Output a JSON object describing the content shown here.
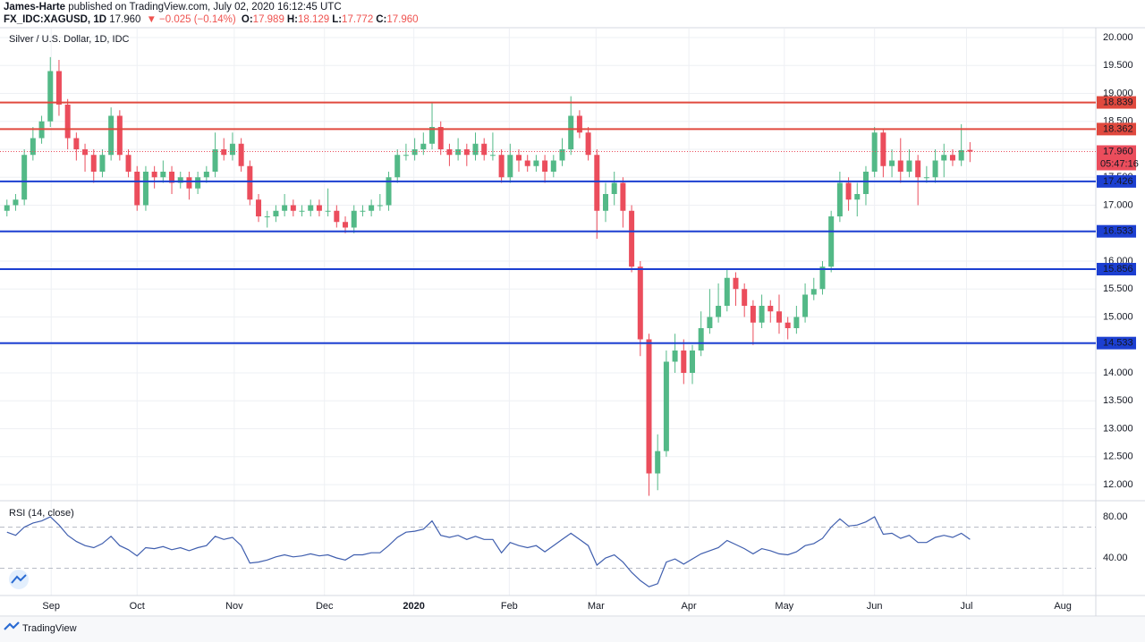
{
  "header": {
    "author": "James-Harte",
    "published": "published on TradingView.com, July 02, 2020 16:12:45 UTC",
    "symbol": "FX_IDC:XAGUSD, 1D",
    "last": "17.960",
    "change": "−0.025 (−0.14%)",
    "ohlc": [
      {
        "key": "O:",
        "value": "17.989"
      },
      {
        "key": "H:",
        "value": "18.129"
      },
      {
        "key": "L:",
        "value": "17.772"
      },
      {
        "key": "C:",
        "value": "17.960"
      }
    ]
  },
  "chart_data": {
    "type": "candlestick",
    "title": "Silver / U.S. Dollar, 1D, IDC",
    "up_color": "#53b987",
    "down_color": "#eb4d5c",
    "open": [
      16.9,
      17.0,
      17.1,
      17.9,
      18.2,
      18.5,
      19.4,
      18.8,
      18.2,
      18.0,
      17.9,
      17.6,
      17.9,
      18.6,
      17.9,
      17.6,
      17.0,
      17.6,
      17.5,
      17.6,
      17.4,
      17.5,
      17.3,
      17.5,
      17.6,
      18.0,
      17.9,
      18.1,
      17.7,
      17.1,
      16.8,
      16.8,
      16.9,
      17.0,
      16.9,
      16.9,
      17.0,
      16.9,
      16.9,
      16.7,
      16.6,
      16.9,
      16.9,
      17.0,
      17.0,
      17.5,
      17.9,
      17.9,
      18.0,
      18.1,
      18.4,
      18.0,
      17.9,
      18.0,
      17.9,
      18.1,
      17.9,
      17.9,
      17.5,
      17.9,
      17.8,
      17.7,
      17.8,
      17.6,
      17.8,
      18.0,
      18.6,
      18.3,
      17.9,
      16.9,
      17.2,
      17.4,
      16.9,
      15.9,
      14.6,
      12.2,
      12.6,
      14.2,
      14.4,
      14.0,
      14.4,
      14.8,
      15.0,
      15.2,
      15.7,
      15.5,
      15.2,
      14.9,
      15.2,
      15.1,
      14.9,
      14.8,
      15.0,
      15.4,
      15.5,
      15.9,
      16.8,
      17.4,
      17.1,
      17.2,
      17.6,
      18.3,
      17.7,
      17.8,
      17.6,
      17.8,
      17.5,
      17.5,
      17.8,
      17.9,
      17.8,
      17.989
    ],
    "high": [
      17.1,
      17.2,
      18.0,
      18.4,
      18.6,
      19.65,
      19.6,
      18.9,
      18.3,
      18.1,
      18.0,
      18.0,
      18.75,
      18.7,
      18.0,
      17.7,
      17.7,
      17.7,
      17.8,
      17.7,
      17.6,
      17.6,
      17.6,
      17.7,
      18.3,
      18.2,
      18.3,
      18.2,
      17.8,
      17.2,
      16.9,
      17.0,
      17.2,
      17.1,
      17.0,
      17.1,
      17.1,
      17.3,
      17.0,
      16.8,
      17.0,
      17.0,
      17.1,
      17.2,
      17.6,
      18.0,
      18.1,
      18.2,
      18.3,
      18.85,
      18.5,
      18.1,
      18.2,
      18.1,
      18.3,
      18.2,
      18.3,
      18.0,
      18.1,
      18.0,
      17.9,
      17.9,
      17.9,
      17.9,
      18.2,
      18.95,
      18.7,
      18.4,
      18.0,
      17.4,
      17.6,
      17.5,
      17.0,
      16.0,
      14.7,
      12.9,
      14.4,
      14.7,
      14.6,
      14.5,
      15.1,
      15.5,
      15.6,
      15.85,
      15.8,
      15.6,
      15.3,
      15.4,
      15.3,
      15.4,
      15.0,
      15.2,
      15.6,
      15.7,
      16.0,
      16.9,
      17.6,
      17.5,
      17.4,
      17.7,
      18.4,
      18.35,
      18.0,
      18.2,
      18.0,
      17.9,
      17.7,
      18.0,
      18.1,
      18.0,
      18.45,
      18.129
    ],
    "low": [
      16.8,
      16.9,
      17.0,
      17.8,
      18.1,
      18.4,
      18.6,
      18.0,
      17.8,
      17.6,
      17.4,
      17.5,
      17.8,
      17.8,
      17.5,
      16.9,
      16.9,
      17.3,
      17.4,
      17.2,
      17.3,
      17.1,
      17.2,
      17.4,
      17.5,
      17.8,
      17.8,
      17.6,
      17.0,
      16.7,
      16.6,
      16.7,
      16.8,
      16.8,
      16.8,
      16.8,
      16.8,
      16.8,
      16.6,
      16.5,
      16.5,
      16.8,
      16.8,
      16.9,
      16.9,
      17.4,
      17.8,
      17.8,
      17.9,
      18.0,
      17.9,
      17.7,
      17.8,
      17.7,
      17.8,
      17.8,
      17.8,
      17.4,
      17.4,
      17.6,
      17.6,
      17.6,
      17.4,
      17.5,
      17.7,
      17.9,
      18.2,
      17.8,
      16.4,
      16.7,
      17.0,
      16.6,
      15.8,
      14.3,
      11.8,
      11.9,
      12.5,
      14.0,
      13.8,
      13.8,
      14.3,
      14.7,
      14.9,
      15.1,
      15.2,
      15.0,
      14.5,
      14.8,
      14.9,
      14.7,
      14.6,
      14.7,
      14.9,
      15.3,
      15.4,
      15.8,
      16.7,
      16.9,
      16.8,
      17.0,
      17.5,
      17.5,
      17.5,
      17.4,
      17.5,
      17.0,
      17.4,
      17.4,
      17.5,
      17.7,
      17.7,
      17.772
    ],
    "close": [
      17.0,
      17.1,
      17.9,
      18.2,
      18.5,
      19.4,
      18.8,
      18.2,
      18.0,
      17.9,
      17.6,
      17.9,
      18.6,
      17.9,
      17.6,
      17.0,
      17.6,
      17.5,
      17.6,
      17.4,
      17.5,
      17.3,
      17.5,
      17.6,
      18.0,
      17.9,
      18.1,
      17.7,
      17.1,
      16.8,
      16.8,
      16.9,
      17.0,
      16.9,
      16.9,
      17.0,
      16.9,
      16.9,
      16.7,
      16.6,
      16.9,
      16.9,
      17.0,
      17.0,
      17.5,
      17.9,
      17.9,
      18.0,
      18.1,
      18.4,
      18.0,
      17.9,
      18.0,
      17.9,
      18.1,
      17.9,
      17.9,
      17.5,
      17.9,
      17.8,
      17.7,
      17.8,
      17.6,
      17.8,
      18.0,
      18.6,
      18.3,
      17.9,
      16.9,
      17.2,
      17.4,
      16.9,
      15.9,
      14.6,
      12.2,
      12.6,
      14.2,
      14.4,
      14.0,
      14.4,
      14.8,
      15.0,
      15.2,
      15.7,
      15.5,
      15.2,
      14.9,
      15.2,
      15.1,
      14.9,
      14.8,
      15.0,
      15.4,
      15.5,
      15.9,
      16.8,
      17.4,
      17.1,
      17.2,
      17.6,
      18.3,
      17.7,
      17.8,
      17.6,
      17.8,
      17.5,
      17.5,
      17.8,
      17.9,
      17.8,
      17.985,
      17.96
    ],
    "xlim": [
      -0.8,
      125.5
    ],
    "xticks": [
      {
        "value": 5.1,
        "label": "Sep"
      },
      {
        "value": 15.0,
        "label": "Oct"
      },
      {
        "value": 26.2,
        "label": "Nov"
      },
      {
        "value": 36.6,
        "label": "Dec"
      },
      {
        "value": 46.9,
        "label": "2020"
      },
      {
        "value": 57.9,
        "label": "Feb"
      },
      {
        "value": 67.9,
        "label": "Mar"
      },
      {
        "value": 78.6,
        "label": "Apr"
      },
      {
        "value": 89.6,
        "label": "May"
      },
      {
        "value": 100.0,
        "label": "Jun"
      },
      {
        "value": 110.6,
        "label": "Jul"
      },
      {
        "value": 121.7,
        "label": "Aug"
      }
    ],
    "ylim": [
      11.744,
      20.16
    ],
    "yticks": [
      {
        "value": 12,
        "label": "12.000"
      },
      {
        "value": 12.5,
        "label": "12.500"
      },
      {
        "value": 13,
        "label": "13.000"
      },
      {
        "value": 13.5,
        "label": "13.500"
      },
      {
        "value": 14,
        "label": "14.000"
      },
      {
        "value": 14.5,
        "label": "14.500"
      },
      {
        "value": 15,
        "label": "15.000"
      },
      {
        "value": 15.5,
        "label": "15.500"
      },
      {
        "value": 16,
        "label": "16.000"
      },
      {
        "value": 16.5,
        "label": "16.500"
      },
      {
        "value": 17,
        "label": "17.000"
      },
      {
        "value": 17.5,
        "label": "17.500"
      },
      {
        "value": 18,
        "label": "18.000"
      },
      {
        "value": 18.5,
        "label": "18.500"
      },
      {
        "value": 19,
        "label": "19.000"
      },
      {
        "value": 19.5,
        "label": "19.500"
      },
      {
        "value": 20,
        "label": "20.000"
      }
    ],
    "grid": true,
    "levels": [
      {
        "value": 18.839,
        "color": "#e0493e"
      },
      {
        "value": 18.362,
        "color": "#e0493e"
      },
      {
        "value": 17.426,
        "color": "#1c3fd1"
      },
      {
        "value": 16.533,
        "color": "#1c3fd1"
      },
      {
        "value": 15.856,
        "color": "#1c3fd1"
      },
      {
        "value": 14.533,
        "color": "#1c3fd1"
      }
    ],
    "last_price": {
      "value": 17.96,
      "label": "17.960"
    },
    "countdown": "05:47:16",
    "rsi": {
      "name": "RSI (14, close)",
      "color": "#3f5eae",
      "values": [
        65,
        62,
        70,
        74,
        76,
        80,
        72,
        62,
        56,
        52,
        50,
        54,
        61,
        52,
        48,
        42,
        50,
        49,
        51,
        48,
        50,
        47,
        50,
        52,
        61,
        58,
        60,
        52,
        35,
        36,
        38,
        41,
        43,
        41,
        42,
        44,
        42,
        43,
        40,
        38,
        43,
        43,
        45,
        45,
        52,
        60,
        65,
        66,
        68,
        76,
        62,
        60,
        62,
        58,
        61,
        58,
        58,
        45,
        55,
        52,
        50,
        52,
        46,
        52,
        58,
        64,
        58,
        52,
        33,
        40,
        43,
        36,
        26,
        18,
        12,
        15,
        36,
        39,
        34,
        39,
        44,
        47,
        50,
        57,
        53,
        49,
        44,
        49,
        47,
        44,
        43,
        46,
        52,
        54,
        59,
        70,
        78,
        71,
        72,
        75,
        80,
        63,
        64,
        59,
        62,
        55,
        55,
        60,
        62,
        60,
        64,
        58
      ],
      "ylim": [
        4.35,
        93.9
      ],
      "yticks": [
        {
          "value": 40,
          "label": "40.00"
        },
        {
          "value": 80,
          "label": "80.00"
        }
      ],
      "bands": [
        30,
        70
      ]
    }
  },
  "footer": {
    "brand": "TradingView"
  }
}
